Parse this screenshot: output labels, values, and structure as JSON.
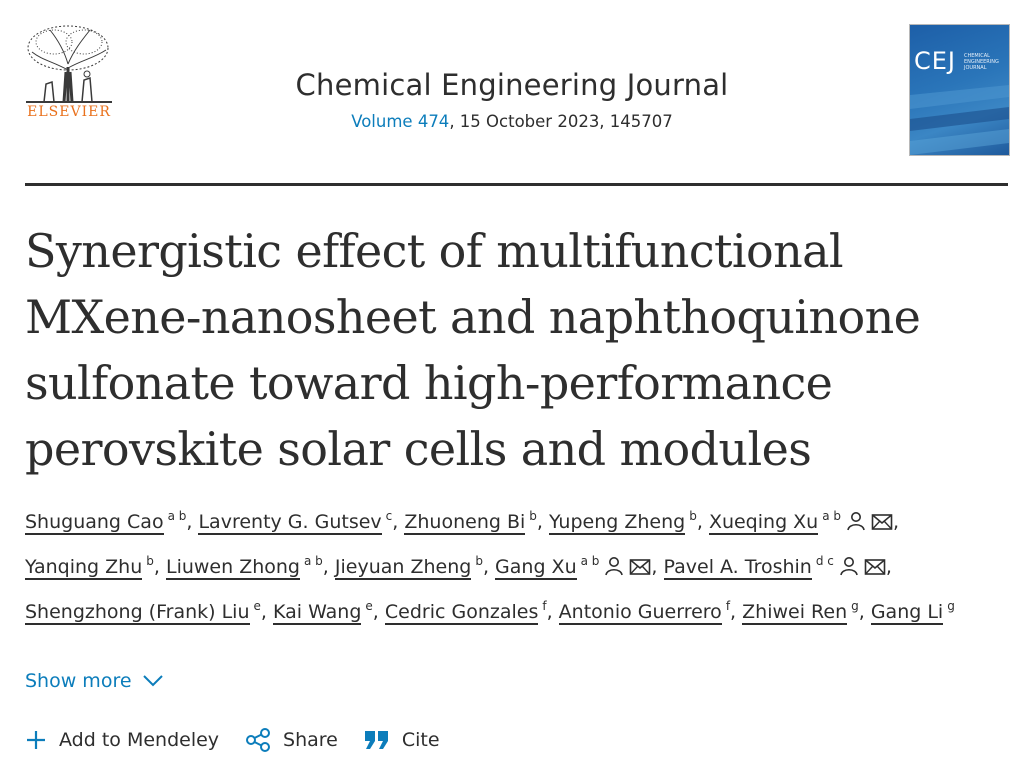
{
  "header": {
    "publisher": "ELSEVIER",
    "journal_title": "Chemical Engineering Journal",
    "volume_link": "Volume 474",
    "issue_details": ", 15 October 2023, 145707",
    "cover": {
      "abbrev": "CEJ",
      "subtitle": "CHEMICAL ENGINEERING JOURNAL"
    }
  },
  "article": {
    "title": "Synergistic effect of multifunctional MXene-nanosheet and naphthoquinone sulfonate toward high-performance perovskite solar cells and modules"
  },
  "authors": [
    {
      "name": "Shuguang Cao",
      "aff": "a b",
      "corresponding": false,
      "sep": ","
    },
    {
      "name": "Lavrenty G. Gutsev",
      "aff": "c",
      "corresponding": false,
      "sep": ","
    },
    {
      "name": "Zhuoneng Bi",
      "aff": "b",
      "corresponding": false,
      "sep": ","
    },
    {
      "name": "Yupeng Zheng",
      "aff": "b",
      "corresponding": false,
      "sep": ","
    },
    {
      "name": "Xueqing Xu",
      "aff": "a b",
      "corresponding": true,
      "sep": ","
    },
    {
      "name": "Yanqing Zhu",
      "aff": "b",
      "corresponding": false,
      "sep": ","
    },
    {
      "name": "Liuwen Zhong",
      "aff": "a b",
      "corresponding": false,
      "sep": ","
    },
    {
      "name": "Jieyuan Zheng",
      "aff": "b",
      "corresponding": false,
      "sep": ","
    },
    {
      "name": "Gang Xu",
      "aff": "a b",
      "corresponding": true,
      "sep": ","
    },
    {
      "name": "Pavel A. Troshin",
      "aff": "d c",
      "corresponding": true,
      "sep": ","
    },
    {
      "name": "Shengzhong (Frank) Liu",
      "aff": "e",
      "corresponding": false,
      "sep": ","
    },
    {
      "name": "Kai Wang",
      "aff": "e",
      "corresponding": false,
      "sep": ","
    },
    {
      "name": "Cedric Gonzales",
      "aff": "f",
      "corresponding": false,
      "sep": ","
    },
    {
      "name": "Antonio Guerrero",
      "aff": "f",
      "corresponding": false,
      "sep": ","
    },
    {
      "name": "Zhiwei Ren",
      "aff": "g",
      "corresponding": false,
      "sep": ","
    },
    {
      "name": "Gang Li",
      "aff": "g",
      "corresponding": false,
      "sep": ""
    }
  ],
  "show_more": {
    "label": "Show more"
  },
  "actions": {
    "mendeley": "Add to Mendeley",
    "share": "Share",
    "cite": "Cite"
  },
  "icons": {
    "person": "person-icon",
    "mail": "envelope-icon",
    "chevron": "chevron-down-icon",
    "plus": "plus-icon",
    "share": "share-icon",
    "cite": "quote-icon"
  },
  "colors": {
    "publisher_orange": "#e9711c",
    "link_blue": "#0c7dbb",
    "text": "#2e2e2e"
  }
}
